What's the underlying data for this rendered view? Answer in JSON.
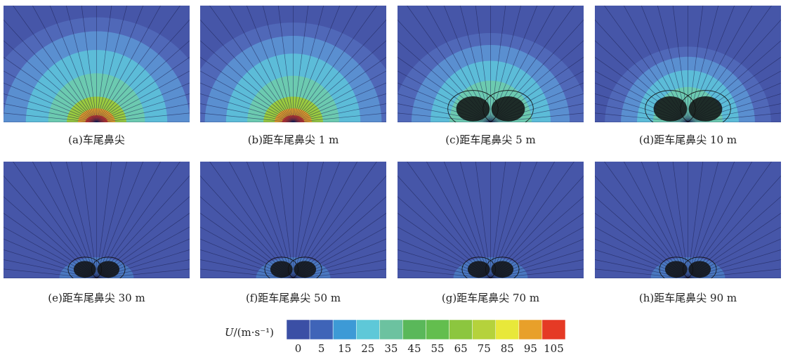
{
  "panels": [
    {
      "caption": "(a)车尾鼻尖"
    },
    {
      "caption": "(b)距车尾鼻尖 1 m"
    },
    {
      "caption": "(c)距车尾鼻尖 5 m"
    },
    {
      "caption": "(d)距车尾鼻尖 10 m"
    },
    {
      "caption": "(e)距车尾鼻尖 30 m"
    },
    {
      "caption": "(f)距车尾鼻尖 50 m"
    },
    {
      "caption": "(g)距车尾鼻尖 70 m"
    },
    {
      "caption": "(h)距车尾鼻尖 90 m"
    }
  ],
  "colorbar": {
    "label_symbol": "U",
    "label_unit": "/(m·s⁻¹)",
    "colors": [
      "#3b4fa5",
      "#3f64b8",
      "#3d9ad6",
      "#5ec8d8",
      "#6cc2a0",
      "#5ab85a",
      "#63be4e",
      "#8cc63f",
      "#b5d23c",
      "#e8e83a",
      "#e8a02a",
      "#e53a25"
    ],
    "ticks": [
      0,
      5,
      15,
      25,
      35,
      45,
      55,
      65,
      75,
      85,
      95,
      105
    ]
  }
}
